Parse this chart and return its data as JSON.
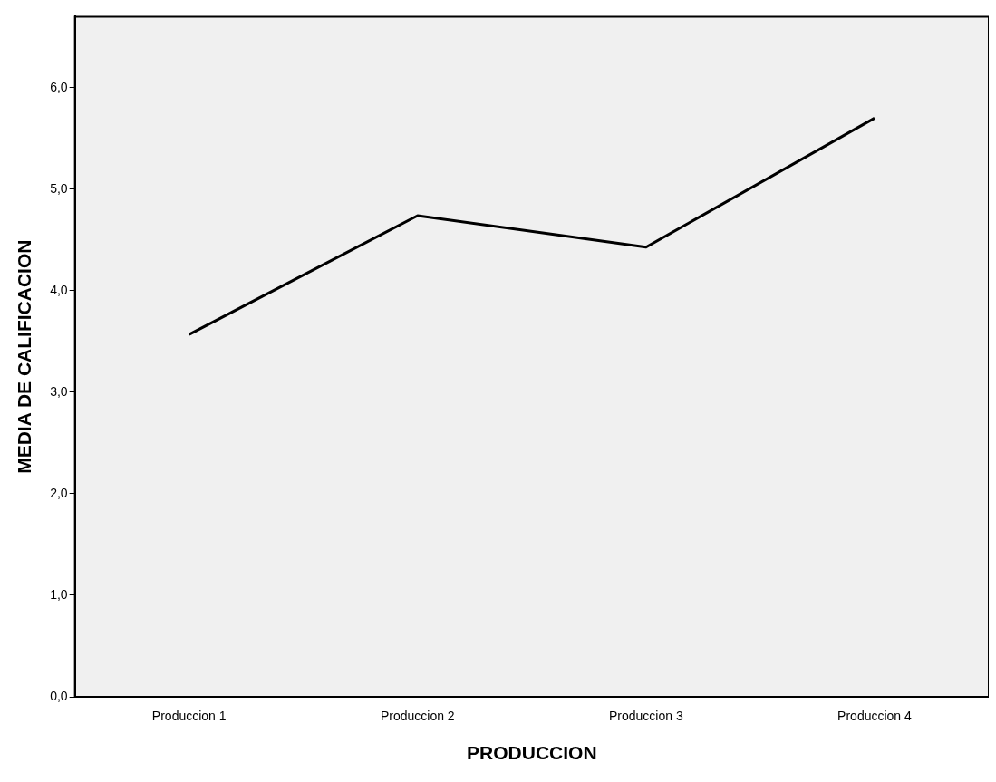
{
  "chart_data": {
    "type": "line",
    "xlabel": "PRODUCCION",
    "ylabel": "MEDIA DE CALIFICACION",
    "categories": [
      "Produccion 1",
      "Produccion 2",
      "Produccion 3",
      "Produccion 4"
    ],
    "series": [
      {
        "color": "#000000",
        "values": [
          3.57,
          4.74,
          4.43,
          5.7
        ]
      }
    ],
    "ylim": [
      0,
      6.7
    ],
    "yticks": [
      {
        "value": 0,
        "label": "0,0"
      },
      {
        "value": 1,
        "label": "1,0"
      },
      {
        "value": 2,
        "label": "2,0"
      },
      {
        "value": 3,
        "label": "3,0"
      },
      {
        "value": 4,
        "label": "4,0"
      },
      {
        "value": 5,
        "label": "5,0"
      },
      {
        "value": 6,
        "label": "6,0"
      }
    ],
    "grid": false,
    "legend": false,
    "marker": "none",
    "line_style": "solid"
  }
}
